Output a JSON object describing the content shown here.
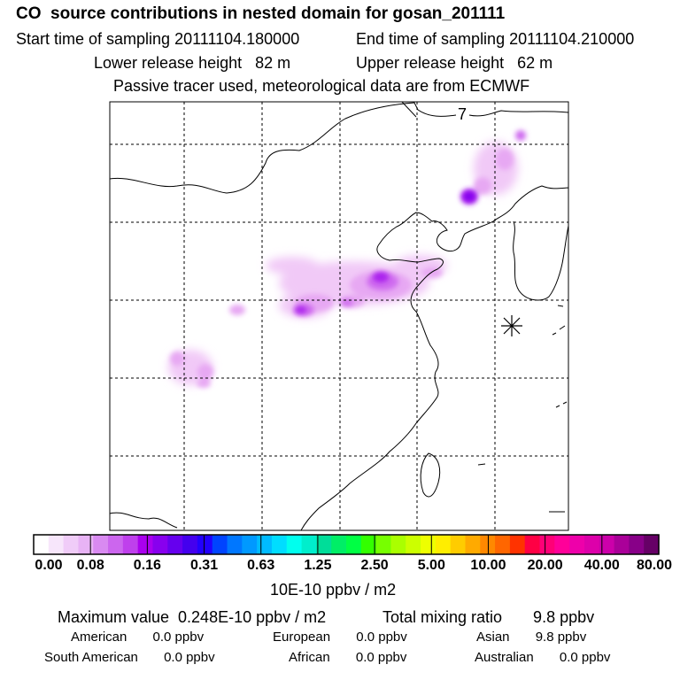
{
  "header": {
    "title": "CO  source contributions in nested domain for gosan_201111",
    "start_label": "Start time of sampling 20111104.180000",
    "end_label": "End time of sampling 20111104.210000",
    "lower_label": "Lower release height   82 m",
    "upper_label": "Upper release height   62 m",
    "tracer_note": "Passive tracer used, meteorological data are from ECMWF"
  },
  "map": {
    "frame_number": "7",
    "receptor_marker": "asterisk-icon"
  },
  "colorbar": {
    "tick_labels": [
      "0.00",
      "0.08",
      "0.16",
      "0.31",
      "0.63",
      "1.25",
      "2.50",
      "5.00",
      "10.00",
      "20.00",
      "40.00",
      "80.00"
    ],
    "unit_label": "10E-10 ppbv / m2",
    "colors": [
      "#ffffff",
      "#f7e6fb",
      "#f0ccf8",
      "#e8b3f5",
      "#d98af1",
      "#cc66ee",
      "#bf40ec",
      "#aa00ee",
      "#8800ee",
      "#6600ee",
      "#4400ee",
      "#2200ff",
      "#0044ff",
      "#0077ff",
      "#0099ff",
      "#00bbff",
      "#00ddff",
      "#00ffee",
      "#00eecc",
      "#00dd99",
      "#00ee66",
      "#00ff44",
      "#33ff00",
      "#77ff00",
      "#aaff00",
      "#ccff00",
      "#eeff00",
      "#ffee00",
      "#ffcc00",
      "#ffaa00",
      "#ff8800",
      "#ff6600",
      "#ff3300",
      "#ff0044",
      "#ff0077",
      "#ff0099",
      "#ee00aa",
      "#dd00aa",
      "#cc00aa",
      "#aa0099",
      "#880088",
      "#660066"
    ]
  },
  "stats": {
    "max_value": "Maximum value  0.248E-10 ppbv / m2",
    "total_mixing": "Total mixing ratio       9.8 ppbv",
    "american": "American       0.0 ppbv",
    "european": "European       0.0 ppbv",
    "asian": "Asian       9.8 ppbv",
    "south_american": "South American       0.0 ppbv",
    "african": "African       0.0 ppbv",
    "australian": "Australian       0.0 ppbv"
  }
}
